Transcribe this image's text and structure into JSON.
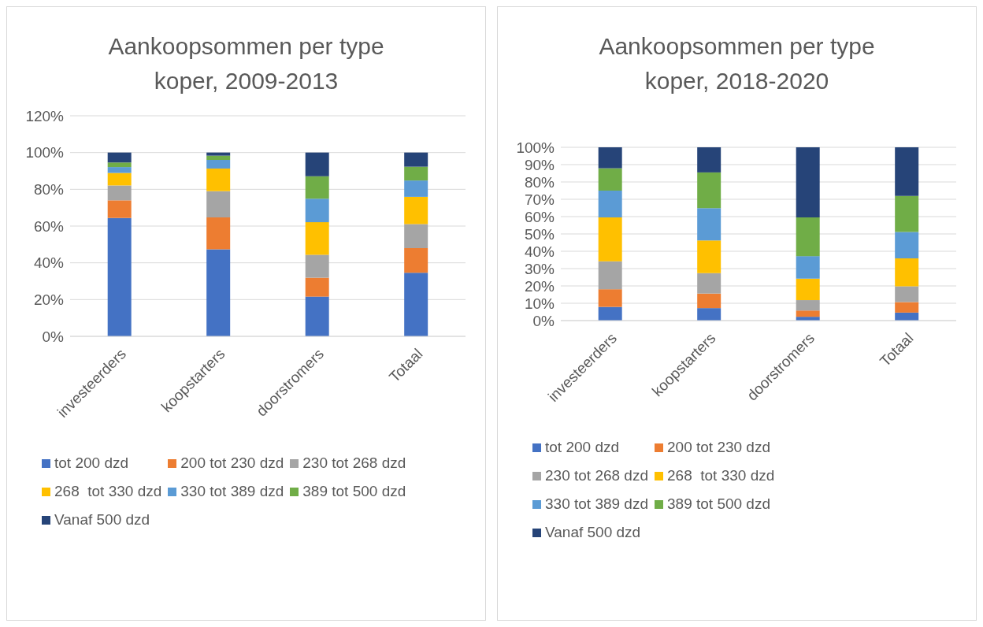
{
  "chart_data": [
    {
      "type": "bar",
      "stacked": true,
      "title": "Aankoopsommen per type koper, 2009-2013",
      "categories": [
        "investeerders",
        "koopstarters",
        "doorstromers",
        "Totaal"
      ],
      "series": [
        {
          "name": "tot 200 dzd",
          "color": "#4472c4",
          "values": [
            64.4,
            47.4,
            21.6,
            34.6
          ]
        },
        {
          "name": "200 tot 230 dzd",
          "color": "#ed7d31",
          "values": [
            9.6,
            17.3,
            10.3,
            13.4
          ]
        },
        {
          "name": "230 tot 268 dzd",
          "color": "#a5a5a5",
          "values": [
            8.1,
            14.3,
            12.5,
            13.1
          ]
        },
        {
          "name": "268  tot 330 dzd",
          "color": "#ffc000",
          "values": [
            6.8,
            12.3,
            17.7,
            14.8
          ]
        },
        {
          "name": "330 tot 389 dzd",
          "color": "#5b9bd5",
          "values": [
            3.2,
            4.7,
            12.8,
            8.9
          ]
        },
        {
          "name": "389 tot 500 dzd",
          "color": "#70ad47",
          "values": [
            2.5,
            2.3,
            12.2,
            7.5
          ]
        },
        {
          "name": "Vanaf 500 dzd",
          "color": "#264478",
          "values": [
            5.4,
            1.7,
            12.9,
            7.7
          ]
        }
      ],
      "ylim": [
        0,
        120
      ],
      "yticks": [
        {
          "value": 0,
          "label": "0%"
        },
        {
          "value": 20,
          "label": "20%"
        },
        {
          "value": 40,
          "label": "40%"
        },
        {
          "value": 60,
          "label": "60%"
        },
        {
          "value": 80,
          "label": "80%"
        },
        {
          "value": 100,
          "label": "100%"
        },
        {
          "value": 120,
          "label": "120%"
        }
      ],
      "grid": "y",
      "legend": "bottom"
    },
    {
      "type": "bar",
      "stacked": true,
      "title": "Aankoopsommen per type koper, 2018-2020",
      "categories": [
        "investeerders",
        "koopstarters",
        "doorstromers",
        "Totaal"
      ],
      "series": [
        {
          "name": "tot 200 dzd",
          "color": "#4472c4",
          "values": [
            7.9,
            7.2,
            2.2,
            4.6
          ]
        },
        {
          "name": "200 tot 230 dzd",
          "color": "#ed7d31",
          "values": [
            10.2,
            8.4,
            3.6,
            6.1
          ]
        },
        {
          "name": "230 tot 268 dzd",
          "color": "#a5a5a5",
          "values": [
            16.1,
            11.8,
            6.0,
            9.1
          ]
        },
        {
          "name": "268  tot 330 dzd",
          "color": "#ffc000",
          "values": [
            25.3,
            18.8,
            12.4,
            16.1
          ]
        },
        {
          "name": "330 tot 389 dzd",
          "color": "#5b9bd5",
          "values": [
            15.5,
            18.7,
            13.0,
            15.2
          ]
        },
        {
          "name": "389 tot 500 dzd",
          "color": "#70ad47",
          "values": [
            12.9,
            20.6,
            22.4,
            20.8
          ]
        },
        {
          "name": "Vanaf 500 dzd",
          "color": "#264478",
          "values": [
            12.1,
            14.5,
            40.4,
            28.1
          ]
        }
      ],
      "ylim": [
        0,
        100
      ],
      "yticks": [
        {
          "value": 0,
          "label": "0%"
        },
        {
          "value": 10,
          "label": "10%"
        },
        {
          "value": 20,
          "label": "20%"
        },
        {
          "value": 30,
          "label": "30%"
        },
        {
          "value": 40,
          "label": "40%"
        },
        {
          "value": 50,
          "label": "50%"
        },
        {
          "value": 60,
          "label": "60%"
        },
        {
          "value": 70,
          "label": "70%"
        },
        {
          "value": 80,
          "label": "80%"
        },
        {
          "value": 90,
          "label": "90%"
        },
        {
          "value": 100,
          "label": "100%"
        }
      ],
      "grid": "y",
      "legend": "bottom"
    }
  ]
}
